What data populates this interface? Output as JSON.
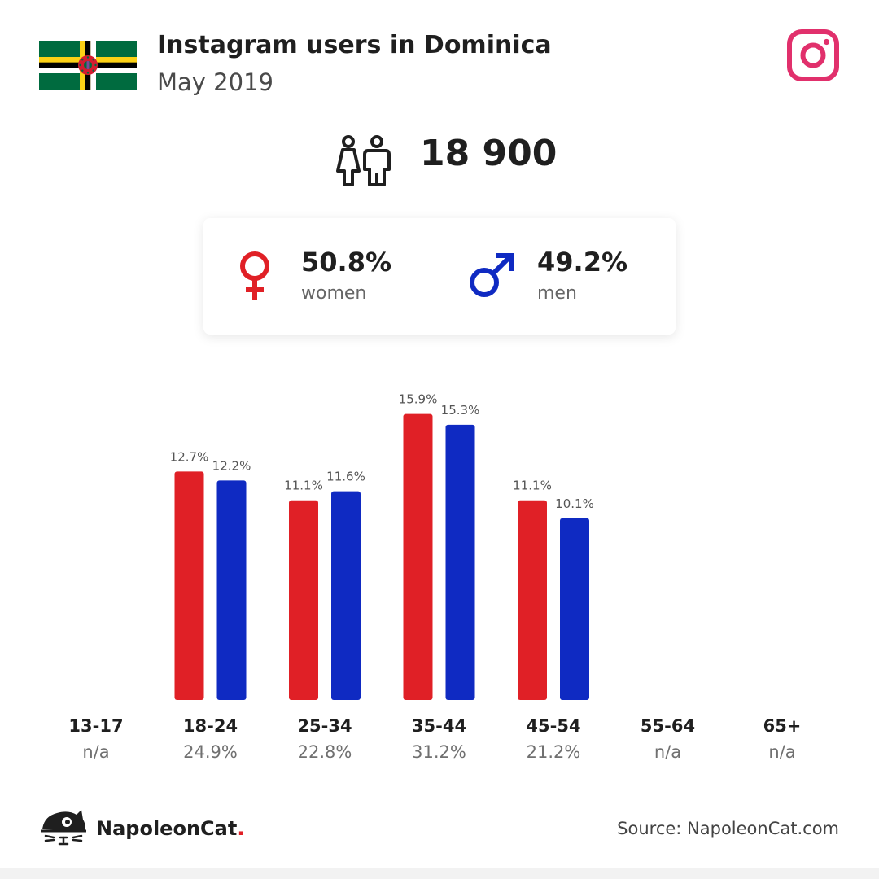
{
  "header": {
    "title": "Instagram users in Dominica",
    "subtitle": "May 2019"
  },
  "total_users": "18 900",
  "gender": {
    "women_pct": "50.8%",
    "women_label": "women",
    "men_pct": "49.2%",
    "men_label": "men"
  },
  "colors": {
    "women": "#e02026",
    "men": "#0f2ac2",
    "instagram": "#e1306c"
  },
  "icons": [
    "dominica-flag-icon",
    "instagram-icon",
    "users-icon",
    "female-symbol-icon",
    "male-symbol-icon",
    "napoleoncat-logo-icon"
  ],
  "chart_data": {
    "type": "bar",
    "categories": [
      "13-17",
      "18-24",
      "25-34",
      "35-44",
      "45-54",
      "55-64",
      "65+"
    ],
    "totals": [
      "n/a",
      "24.9%",
      "22.8%",
      "31.2%",
      "21.2%",
      "n/a",
      "n/a"
    ],
    "series": [
      {
        "name": "women",
        "values": [
          null,
          12.7,
          11.1,
          15.9,
          11.1,
          null,
          null
        ],
        "labels": [
          "",
          "12.7%",
          "11.1%",
          "15.9%",
          "11.1%",
          "",
          ""
        ]
      },
      {
        "name": "men",
        "values": [
          null,
          12.2,
          11.6,
          15.3,
          10.1,
          null,
          null
        ],
        "labels": [
          "",
          "12.2%",
          "11.6%",
          "15.3%",
          "10.1%",
          "",
          ""
        ]
      }
    ],
    "grid": false
  },
  "footer": {
    "brand": "NapoleonCat",
    "brand_dot": ".",
    "source": "Source: NapoleonCat.com"
  }
}
